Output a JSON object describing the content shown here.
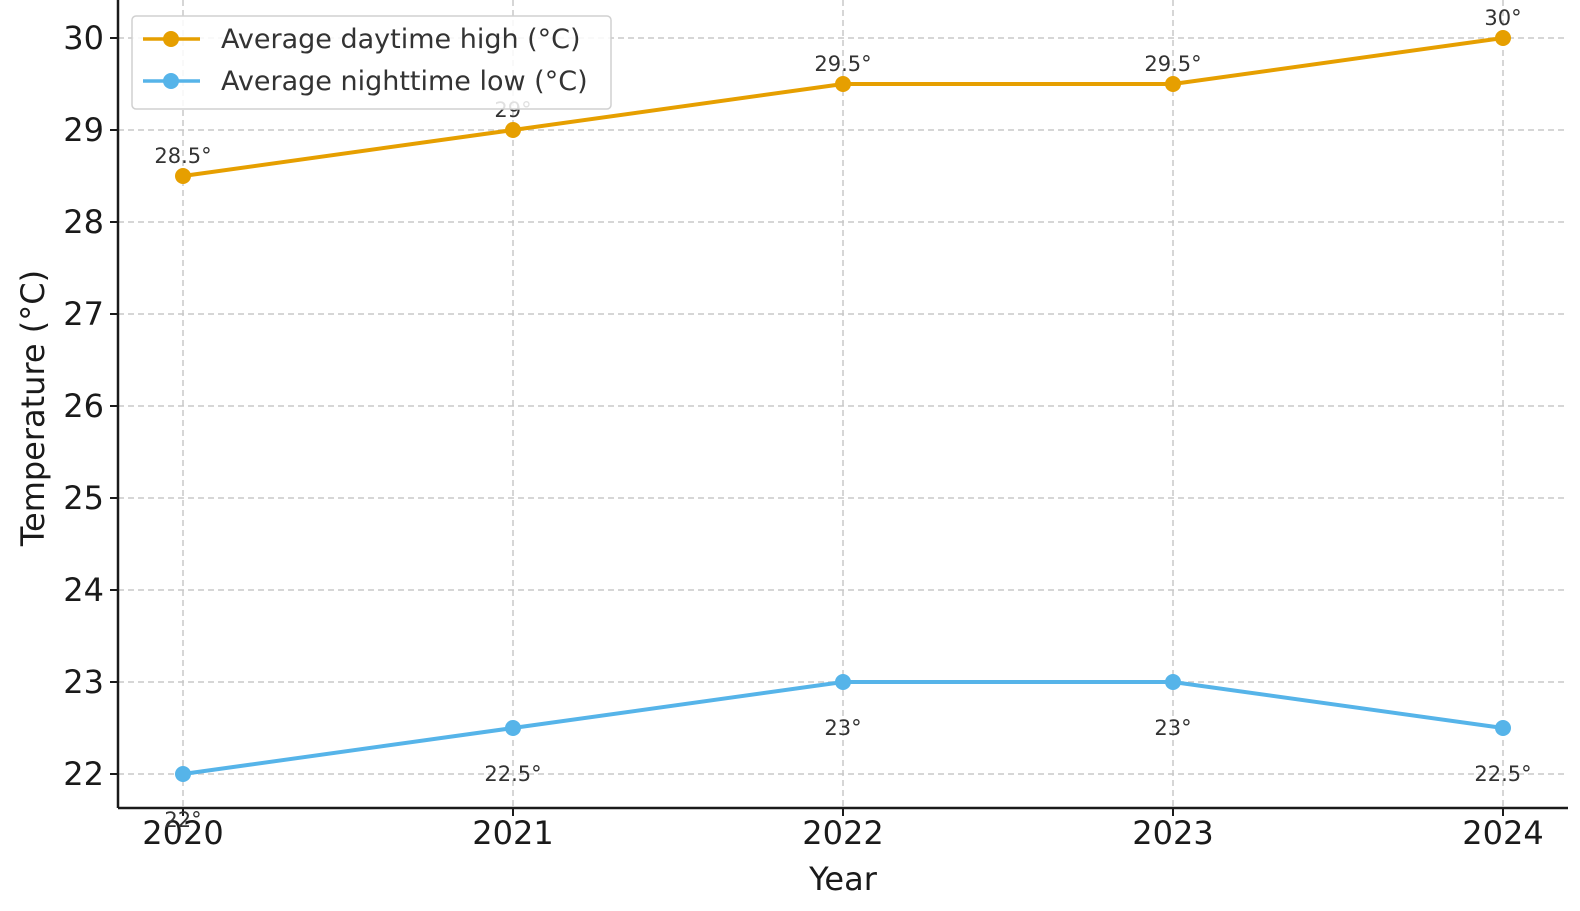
{
  "chart_data": {
    "type": "line",
    "title": "",
    "xlabel": "Year",
    "ylabel": "Temperature (°C)",
    "categories": [
      "2020",
      "2021",
      "2022",
      "2023",
      "2024"
    ],
    "ylim": [
      21.6,
      30.4
    ],
    "yticks": [
      22,
      23,
      24,
      25,
      26,
      27,
      28,
      29,
      30
    ],
    "grid": true,
    "legend_position": "top-left",
    "series": [
      {
        "name": "Average daytime high (°C)",
        "color": "#E69F00",
        "values": [
          28.5,
          29,
          29.5,
          29.5,
          30
        ],
        "labels": [
          "28.5°",
          "29°",
          "29.5°",
          "29.5°",
          "30°"
        ],
        "label_position": "above"
      },
      {
        "name": "Average nighttime low (°C)",
        "color": "#56B4E9",
        "values": [
          22,
          22.5,
          23,
          23,
          22.5
        ],
        "labels": [
          "22°",
          "22.5°",
          "23°",
          "23°",
          "22.5°"
        ],
        "label_position": "below"
      }
    ]
  }
}
